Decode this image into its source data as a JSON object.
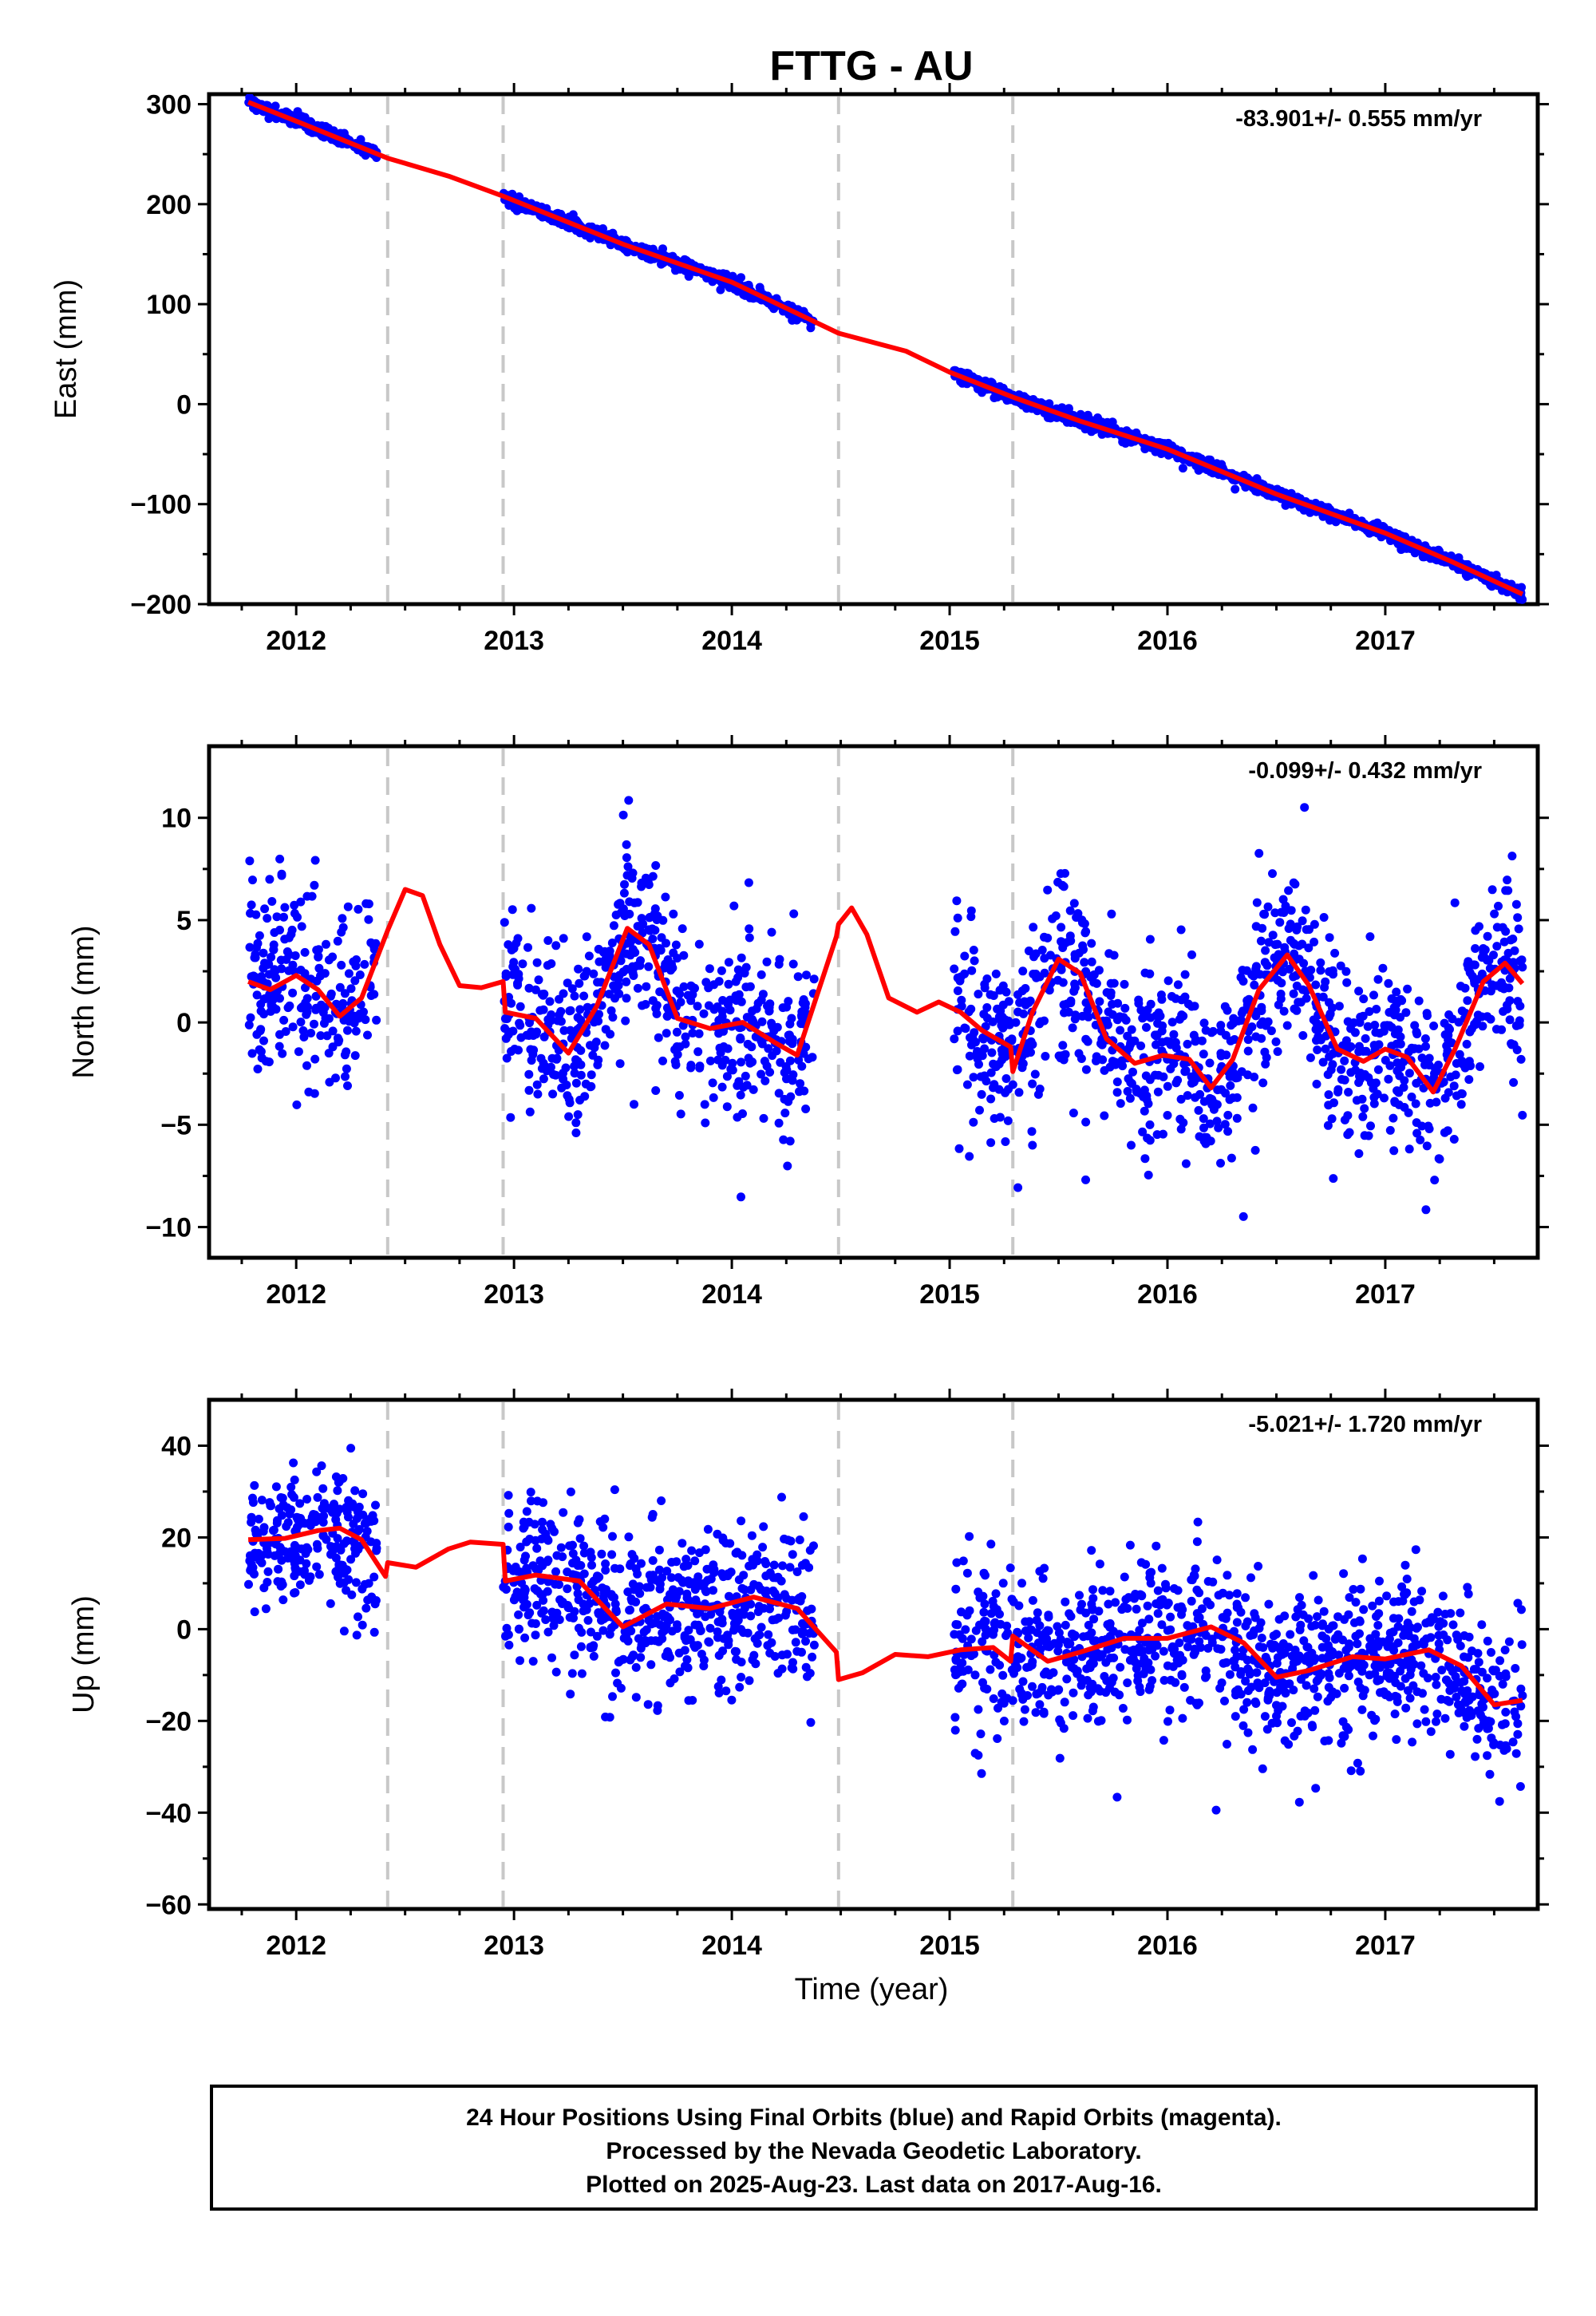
{
  "title": "FTTG - AU",
  "xlabel": "Time (year)",
  "footer": {
    "line1": "24 Hour Positions Using Final Orbits (blue) and Rapid Orbits (magenta).",
    "line2": "Processed by the Nevada Geodetic Laboratory.",
    "line3": "Plotted on 2025-Aug-23. Last data on 2017-Aug-16."
  },
  "colors": {
    "points": "#0000ff",
    "model": "#ff0000",
    "breaks": "#c8c8c8",
    "frame": "#000000"
  },
  "chart_data": [
    {
      "type": "scatter",
      "component": "east",
      "ylabel": "East (mm)",
      "rate": "-83.901+/- 0.555 mm/yr",
      "xlim": [
        2011.6,
        2017.7
      ],
      "ylim": [
        -200,
        310
      ],
      "xticks": [
        "2012",
        "2013",
        "2014",
        "2015",
        "2016",
        "2017"
      ],
      "yticks": [
        "300",
        "200",
        "100",
        "0",
        "−100",
        "−200"
      ],
      "ytick_values": [
        300,
        200,
        100,
        0,
        -100,
        -200
      ],
      "breaks": [
        2012.42,
        2012.95,
        2014.49,
        2015.29
      ],
      "data_segments": [
        [
          2011.78,
          2012.37
        ],
        [
          2012.95,
          2014.38
        ],
        [
          2015.02,
          2017.63
        ]
      ],
      "model": {
        "x": [
          2011.78,
          2012.0,
          2012.42,
          2012.7,
          2012.95,
          2013.5,
          2014.0,
          2014.49,
          2014.8,
          2015.0,
          2015.29,
          2015.6,
          2016.0,
          2016.5,
          2017.0,
          2017.3,
          2017.63
        ],
        "y": [
          302,
          283,
          246,
          228,
          208,
          160,
          122,
          71,
          53,
          32,
          7,
          -17,
          -45,
          -90,
          -129,
          -157,
          -190
        ]
      },
      "scatter": {
        "count": 1900,
        "sigma": 3.0
      }
    },
    {
      "type": "scatter",
      "component": "north",
      "ylabel": "North (mm)",
      "rate": "-0.099+/- 0.432 mm/yr",
      "xlim": [
        2011.6,
        2017.7
      ],
      "ylim": [
        -11.5,
        13.5
      ],
      "xticks": [
        "2012",
        "2013",
        "2014",
        "2015",
        "2016",
        "2017"
      ],
      "yticks": [
        "10",
        "5",
        "0",
        "−5",
        "−10"
      ],
      "ytick_values": [
        10,
        5,
        0,
        -5,
        -10
      ],
      "breaks": [
        2012.42,
        2012.95,
        2014.49,
        2015.29
      ],
      "data_segments": [
        [
          2011.78,
          2012.37
        ],
        [
          2012.95,
          2014.38
        ],
        [
          2015.02,
          2017.63
        ]
      ],
      "model": {
        "x": [
          2011.78,
          2011.88,
          2012.0,
          2012.1,
          2012.2,
          2012.3,
          2012.42,
          2012.5,
          2012.58,
          2012.66,
          2012.75,
          2012.85,
          2012.95,
          2012.96,
          2013.1,
          2013.25,
          2013.38,
          2013.52,
          2013.62,
          2013.75,
          2013.9,
          2014.05,
          2014.2,
          2014.3,
          2014.48,
          2014.49,
          2014.55,
          2014.62,
          2014.72,
          2014.85,
          2014.95,
          2015.05,
          2015.15,
          2015.28,
          2015.29,
          2015.38,
          2015.5,
          2015.6,
          2015.72,
          2015.85,
          2015.98,
          2016.1,
          2016.2,
          2016.3,
          2016.42,
          2016.55,
          2016.65,
          2016.78,
          2016.9,
          2017.0,
          2017.1,
          2017.22,
          2017.32,
          2017.45,
          2017.55,
          2017.63
        ],
        "y": [
          2.0,
          1.6,
          2.3,
          1.6,
          0.3,
          1.2,
          4.5,
          6.5,
          6.2,
          3.8,
          1.8,
          1.7,
          2.0,
          0.5,
          0.2,
          -1.5,
          0.8,
          4.6,
          3.8,
          0.2,
          -0.3,
          0.0,
          -1.0,
          -1.6,
          4.2,
          4.8,
          5.6,
          4.3,
          1.2,
          0.5,
          1.0,
          0.5,
          -0.4,
          -1.2,
          -2.4,
          0.5,
          3.1,
          2.4,
          -0.8,
          -2.0,
          -1.6,
          -1.8,
          -3.2,
          -1.8,
          1.6,
          3.3,
          1.8,
          -1.3,
          -1.9,
          -1.3,
          -1.7,
          -3.4,
          -1.3,
          2.0,
          2.9,
          1.9
        ]
      },
      "scatter": {
        "count": 1800,
        "sigma": 2.2
      }
    },
    {
      "type": "scatter",
      "component": "up",
      "ylabel": "Up (mm)",
      "rate": "-5.021+/- 1.720 mm/yr",
      "xlim": [
        2011.6,
        2017.7
      ],
      "ylim": [
        -61,
        50
      ],
      "xticks": [
        "2012",
        "2013",
        "2014",
        "2015",
        "2016",
        "2017"
      ],
      "yticks": [
        "40",
        "20",
        "0",
        "−20",
        "−40",
        "−60"
      ],
      "ytick_values": [
        40,
        20,
        0,
        -20,
        -40,
        -60
      ],
      "breaks": [
        2012.42,
        2012.95,
        2014.49,
        2015.29
      ],
      "data_segments": [
        [
          2011.78,
          2012.37
        ],
        [
          2012.95,
          2014.38
        ],
        [
          2015.02,
          2017.63
        ]
      ],
      "model": {
        "x": [
          2011.78,
          2011.95,
          2012.1,
          2012.2,
          2012.3,
          2012.41,
          2012.42,
          2012.55,
          2012.7,
          2012.8,
          2012.95,
          2012.96,
          2013.1,
          2013.3,
          2013.5,
          2013.7,
          2013.9,
          2014.1,
          2014.3,
          2014.48,
          2014.49,
          2014.6,
          2014.75,
          2014.9,
          2015.05,
          2015.2,
          2015.28,
          2015.29,
          2015.45,
          2015.6,
          2015.8,
          2016.0,
          2016.2,
          2016.35,
          2016.5,
          2016.65,
          2016.85,
          2017.0,
          2017.2,
          2017.35,
          2017.5,
          2017.63
        ],
        "y": [
          19.5,
          19.8,
          21.5,
          22.0,
          19.5,
          11.5,
          14.5,
          13.5,
          17.5,
          19.0,
          18.5,
          10.5,
          11.8,
          10.5,
          0.5,
          5.5,
          4.5,
          7.0,
          4.5,
          -5.0,
          -11.0,
          -9.5,
          -5.5,
          -6.0,
          -4.5,
          -4.0,
          -7.0,
          -1.5,
          -7.0,
          -5.0,
          -2.0,
          -2.0,
          0.5,
          -3.0,
          -10.5,
          -9.0,
          -6.0,
          -6.5,
          -4.5,
          -8.0,
          -16.5,
          -15.5
        ]
      },
      "scatter": {
        "count": 1800,
        "sigma": 8.5
      }
    }
  ]
}
